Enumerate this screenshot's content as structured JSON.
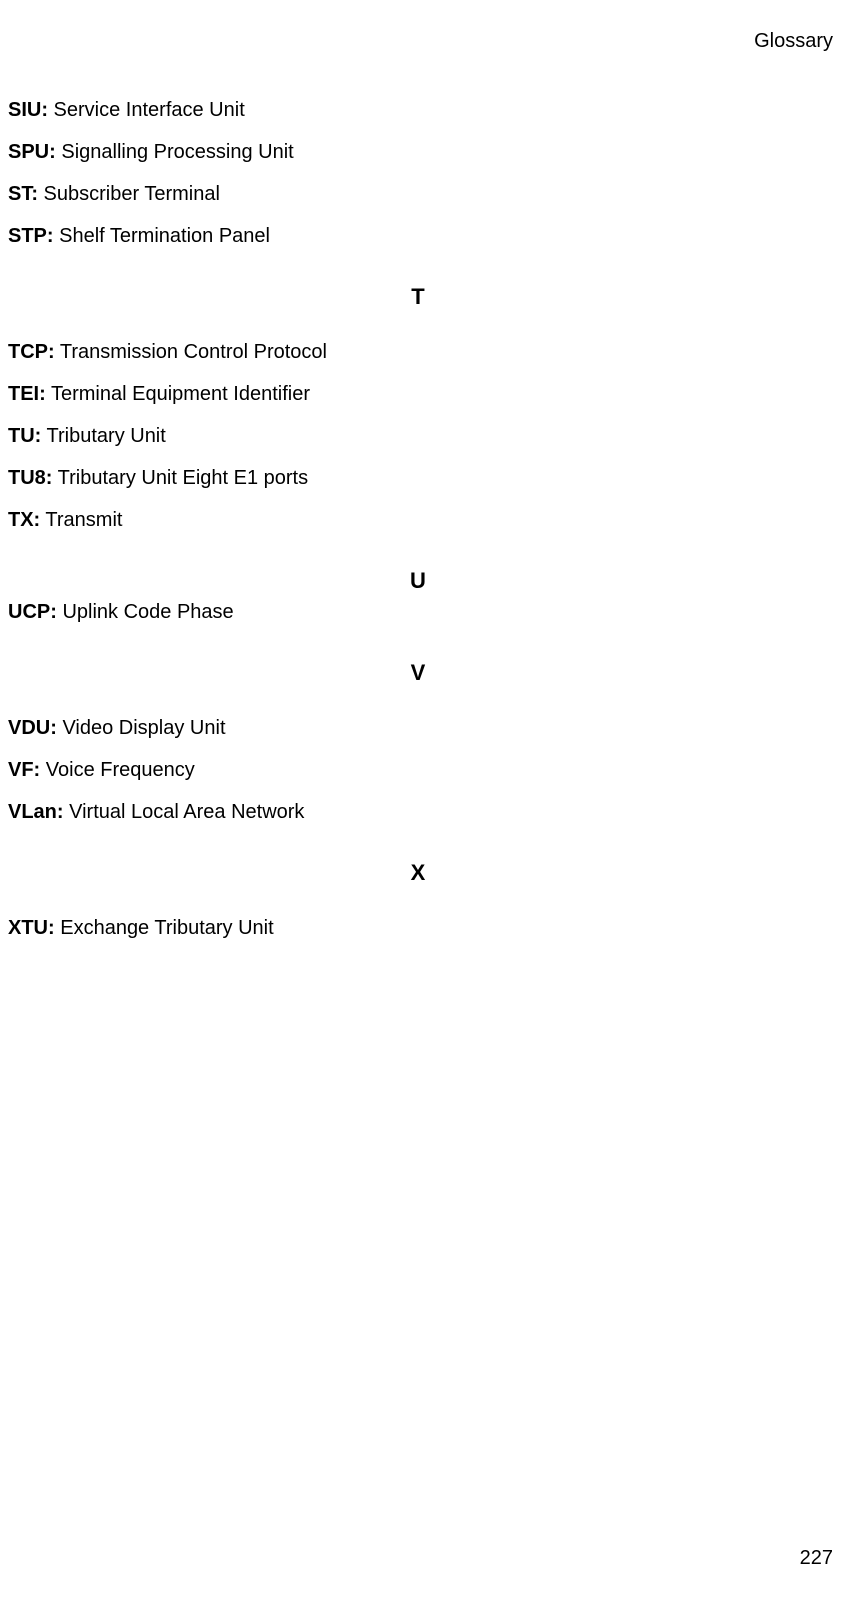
{
  "header": "Glossary",
  "page_number": "227",
  "entries_top": [
    {
      "term": "SIU:",
      "def": " Service Interface Unit"
    },
    {
      "term": "SPU:",
      "def": " Signalling Processing Unit"
    },
    {
      "term": "ST:",
      "def": " Subscriber Terminal"
    },
    {
      "term": "STP:",
      "def": " Shelf Termination Panel"
    }
  ],
  "section_T": "T",
  "entries_T": [
    {
      "term": "TCP:",
      "def": " Transmission Control Protocol"
    },
    {
      "term": "TEI:",
      "def": " Terminal Equipment Identifier"
    },
    {
      "term": "TU:",
      "def": " Tributary Unit"
    },
    {
      "term": "TU8:",
      "def": " Tributary Unit Eight E1 ports"
    },
    {
      "term": "TX:",
      "def": " Transmit"
    }
  ],
  "section_U": "U",
  "entries_U": [
    {
      "term": "UCP:",
      "def": " Uplink Code Phase"
    }
  ],
  "section_V": "V",
  "entries_V": [
    {
      "term": "VDU:",
      "def": " Video Display Unit"
    },
    {
      "term": "VF:",
      "def": " Voice Frequency"
    },
    {
      "term": "VLan:",
      "def": " Virtual Local Area Network"
    }
  ],
  "section_X": "X",
  "entries_X": [
    {
      "term": "XTU:",
      "def": " Exchange Tributary Unit"
    }
  ]
}
